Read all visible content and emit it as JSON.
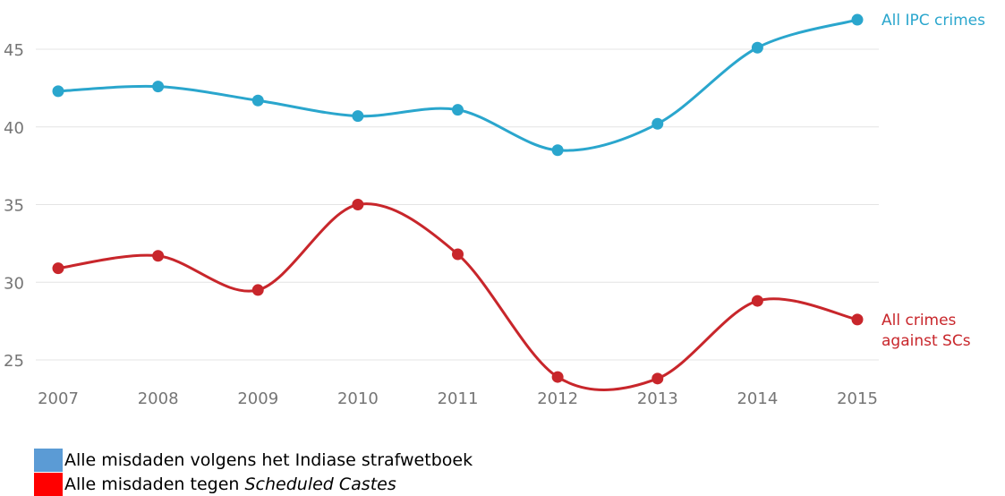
{
  "chart_data": {
    "type": "line",
    "x": [
      2007,
      2008,
      2009,
      2010,
      2011,
      2012,
      2013,
      2014,
      2015
    ],
    "ylim": [
      23.5,
      47.5
    ],
    "yticks": [
      25,
      30,
      35,
      40,
      45
    ],
    "grid": true,
    "series": [
      {
        "name": "All IPC crimes",
        "label_lines": [
          "All IPC crimes"
        ],
        "color": "#2aa6cd",
        "values": [
          42.3,
          42.6,
          41.7,
          40.7,
          41.1,
          38.5,
          40.2,
          45.1,
          46.9
        ]
      },
      {
        "name": "All crimes against SCs",
        "label_lines": [
          "All crimes",
          "against SCs"
        ],
        "color": "#c8262b",
        "values": [
          30.9,
          31.7,
          29.5,
          35.0,
          31.8,
          23.9,
          23.8,
          28.8,
          27.6
        ]
      }
    ]
  },
  "legend": {
    "items": [
      {
        "color": "#5b9bd5",
        "text": "Alle misdaden volgens het Indiase strafwetboek",
        "italic": ""
      },
      {
        "color": "#ff0000",
        "text": "Alle misdaden tegen ",
        "italic": "Scheduled Castes"
      }
    ]
  }
}
